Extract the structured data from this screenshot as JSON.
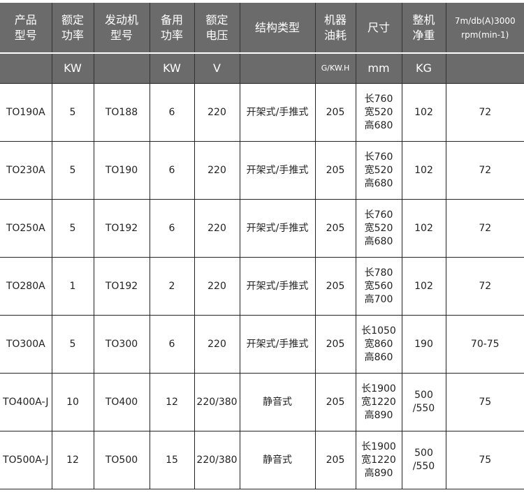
{
  "header": {
    "row1": [
      "产品\n型号",
      "额定\n功率",
      "发动机\n型号",
      "备用\n功率",
      "额定\n电压",
      "结构类型",
      "机器\n油耗",
      "尺寸",
      "整机\n净重",
      "7m/db(A)3000\nrpm(min-1)"
    ],
    "row2": [
      "",
      "KW",
      "",
      "KW",
      "V",
      "",
      "G/KW.H",
      "mm",
      "KG",
      ""
    ]
  },
  "rows": [
    [
      "TO190A",
      "5",
      "TO188",
      "6",
      "220",
      "开架式/手推式",
      "205",
      "长760\n宽520\n高680",
      "102",
      "72"
    ],
    [
      "TO230A",
      "5",
      "TO190",
      "6",
      "220",
      "开架式/手推式",
      "205",
      "长760\n宽520\n高680",
      "102",
      "72"
    ],
    [
      "TO250A",
      "5",
      "TO192",
      "6",
      "220",
      "开架式/手推式",
      "205",
      "长760\n宽520\n高680",
      "102",
      "72"
    ],
    [
      "TO280A",
      "1",
      "TO192",
      "2",
      "220",
      "开架式/手推式",
      "205",
      "长780\n宽560\n高700",
      "102",
      "72"
    ],
    [
      "TO300A",
      "5",
      "TO300",
      "6",
      "220",
      "开架式/手推式",
      "205",
      "长1050\n宽860\n高860",
      "190",
      "70-75"
    ],
    [
      "TO400A-J",
      "10",
      "TO400",
      "12",
      "220/380",
      "静音式",
      "205",
      "长1900\n宽1220\n高890",
      "500\n/550",
      "75"
    ],
    [
      "TO500A-J",
      "12",
      "TO500",
      "15",
      "220/380",
      "静音式",
      "205",
      "长1900\n宽1220\n高890",
      "500\n/550",
      "75"
    ]
  ]
}
